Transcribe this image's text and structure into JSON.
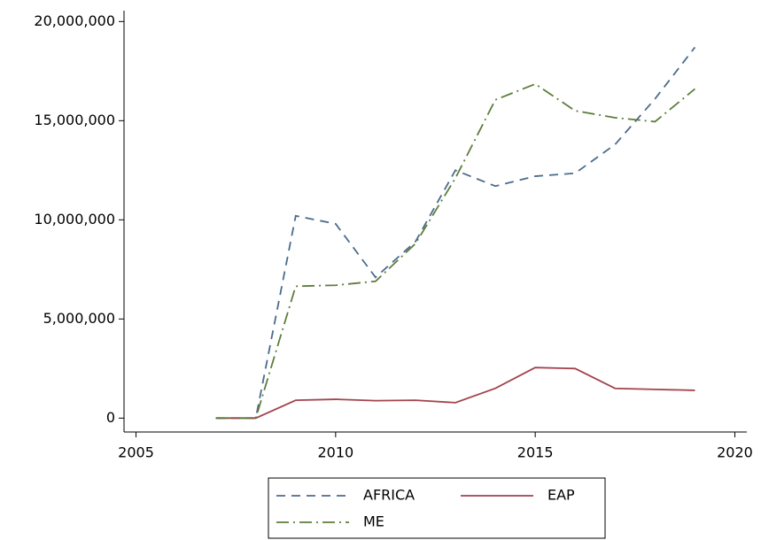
{
  "chart_data": {
    "type": "line",
    "x": [
      2007,
      2008,
      2009,
      2010,
      2011,
      2012,
      2013,
      2014,
      2015,
      2016,
      2017,
      2018,
      2019
    ],
    "series": [
      {
        "name": "AFRICA",
        "color": "#4a6b8c",
        "dash": "dashed",
        "values": [
          0,
          0,
          10200000,
          9800000,
          7100000,
          8900000,
          12500000,
          11700000,
          12200000,
          12350000,
          13800000,
          16100000,
          18700000
        ]
      },
      {
        "name": "EAP",
        "color": "#a3434e",
        "dash": "solid",
        "values": [
          0,
          0,
          900000,
          950000,
          880000,
          900000,
          780000,
          1500000,
          2550000,
          2500000,
          1500000,
          1450000,
          1400000
        ]
      },
      {
        "name": "ME",
        "color": "#5e7d3c",
        "dash": "dashdot",
        "values": [
          0,
          0,
          6650000,
          6700000,
          6900000,
          8800000,
          12100000,
          16050000,
          16850000,
          15500000,
          15150000,
          14950000,
          16600000
        ]
      }
    ],
    "xlim": [
      2004.7,
      2020.3
    ],
    "ylim": [
      -700000,
      20550000
    ],
    "xticks": [
      2005,
      2010,
      2015,
      2020
    ],
    "yticks": [
      {
        "value": 0,
        "label": "0"
      },
      {
        "value": 5000000,
        "label": "5,000,000"
      },
      {
        "value": 10000000,
        "label": "10,000,000"
      },
      {
        "value": 15000000,
        "label": "15,000,000"
      },
      {
        "value": 20000000,
        "label": "20,000,000"
      }
    ],
    "grid": false
  }
}
